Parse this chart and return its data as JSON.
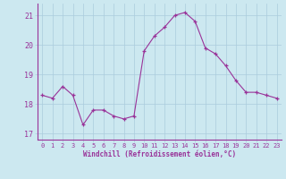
{
  "x": [
    0,
    1,
    2,
    3,
    4,
    5,
    6,
    7,
    8,
    9,
    10,
    11,
    12,
    13,
    14,
    15,
    16,
    17,
    18,
    19,
    20,
    21,
    22,
    23
  ],
  "y": [
    18.3,
    18.2,
    18.6,
    18.3,
    17.3,
    17.8,
    17.8,
    17.6,
    17.5,
    17.6,
    19.8,
    20.3,
    20.6,
    21.0,
    21.1,
    20.8,
    19.9,
    19.7,
    19.3,
    18.8,
    18.4,
    18.4,
    18.3,
    18.2
  ],
  "line_color": "#993399",
  "marker_color": "#993399",
  "bg_color": "#cce8f0",
  "grid_color": "#aaccdd",
  "xlabel": "Windchill (Refroidissement éolien,°C)",
  "xlabel_color": "#993399",
  "xtick_color": "#993399",
  "ytick_color": "#993399",
  "ylim": [
    16.8,
    21.4
  ],
  "xlim": [
    -0.5,
    23.5
  ],
  "yticks": [
    17,
    18,
    19,
    20,
    21
  ],
  "xticks": [
    0,
    1,
    2,
    3,
    4,
    5,
    6,
    7,
    8,
    9,
    10,
    11,
    12,
    13,
    14,
    15,
    16,
    17,
    18,
    19,
    20,
    21,
    22,
    23
  ]
}
